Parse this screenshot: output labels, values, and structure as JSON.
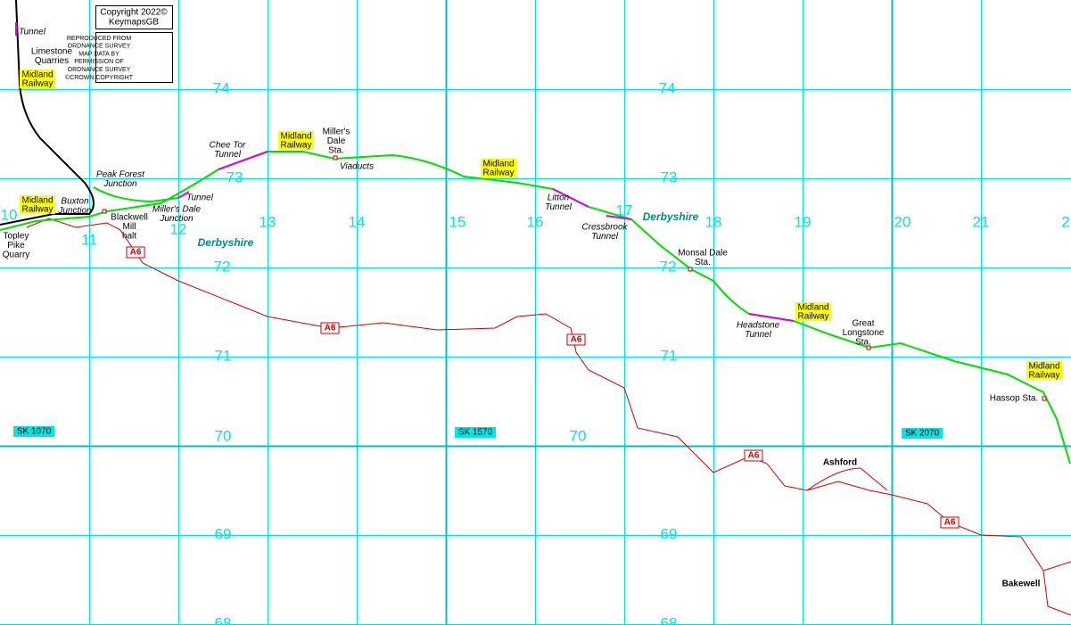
{
  "copyright": {
    "lines": [
      "Copyright 2022©",
      "KeymapsGB"
    ],
    "notice": [
      "REPRODUCED FROM",
      "ORDNANCE SURVEY",
      "MAP DATA BY",
      "PERMISSION OF",
      "ORDNANCE SURVEY",
      "©CROWN COPYRIGHT"
    ]
  },
  "eastings": [
    "10",
    "11",
    "12",
    "13",
    "14",
    "15",
    "16",
    "17",
    "18",
    "19",
    "20",
    "21",
    "2"
  ],
  "northings": [
    "74",
    "74",
    "73",
    "73",
    "72",
    "72",
    "71",
    "71",
    "70",
    "70",
    "69",
    "69",
    "68",
    "68"
  ],
  "sheets": [
    "SK 1070",
    "SK 1570",
    "SK 2070"
  ],
  "roads": [
    "A6",
    "A6",
    "A6",
    "A6",
    "A6"
  ],
  "places": [
    {
      "lines": [
        "Tunnel"
      ]
    },
    {
      "lines": [
        "Limestone",
        "Quarries"
      ]
    },
    {
      "lines": [
        "Midland",
        "Railway"
      ]
    },
    {
      "lines": [
        "Peak Forest",
        "Junction"
      ]
    },
    {
      "lines": [
        "Buxton",
        "Junction"
      ]
    },
    {
      "lines": [
        "Midland",
        "Railway"
      ]
    },
    {
      "lines": [
        "Topley",
        "Pike",
        "Quarry"
      ]
    },
    {
      "lines": [
        "Blackwell",
        "Mill",
        "halt"
      ]
    },
    {
      "lines": [
        "Miller's Dale",
        "Junction"
      ]
    },
    {
      "lines": [
        "Tunnel"
      ]
    },
    {
      "lines": [
        "Chee Tor",
        "Tunnel"
      ]
    },
    {
      "lines": [
        "Midland",
        "Railway"
      ]
    },
    {
      "lines": [
        "Miller's",
        "Dale",
        "Sta."
      ]
    },
    {
      "lines": [
        "Viaducts"
      ]
    },
    {
      "lines": [
        "Midland",
        "Railway"
      ]
    },
    {
      "lines": [
        "Litton",
        "Tunnel"
      ]
    },
    {
      "lines": [
        "Cressbrook",
        "Tunnel"
      ]
    },
    {
      "lines": [
        "Derbyshire"
      ]
    },
    {
      "lines": [
        "Derbyshire"
      ]
    },
    {
      "lines": [
        "Monsal Dale",
        "Sta."
      ]
    },
    {
      "lines": [
        "Headstone",
        "Tunnel"
      ]
    },
    {
      "lines": [
        "Midland",
        "Railway"
      ]
    },
    {
      "lines": [
        "Great",
        "Longstone",
        "Sta."
      ]
    },
    {
      "lines": [
        "Midland",
        "Railway"
      ]
    },
    {
      "lines": [
        "Hassop Sta."
      ]
    },
    {
      "lines": [
        "Ashford"
      ]
    },
    {
      "lines": [
        "Bakewell"
      ]
    }
  ]
}
